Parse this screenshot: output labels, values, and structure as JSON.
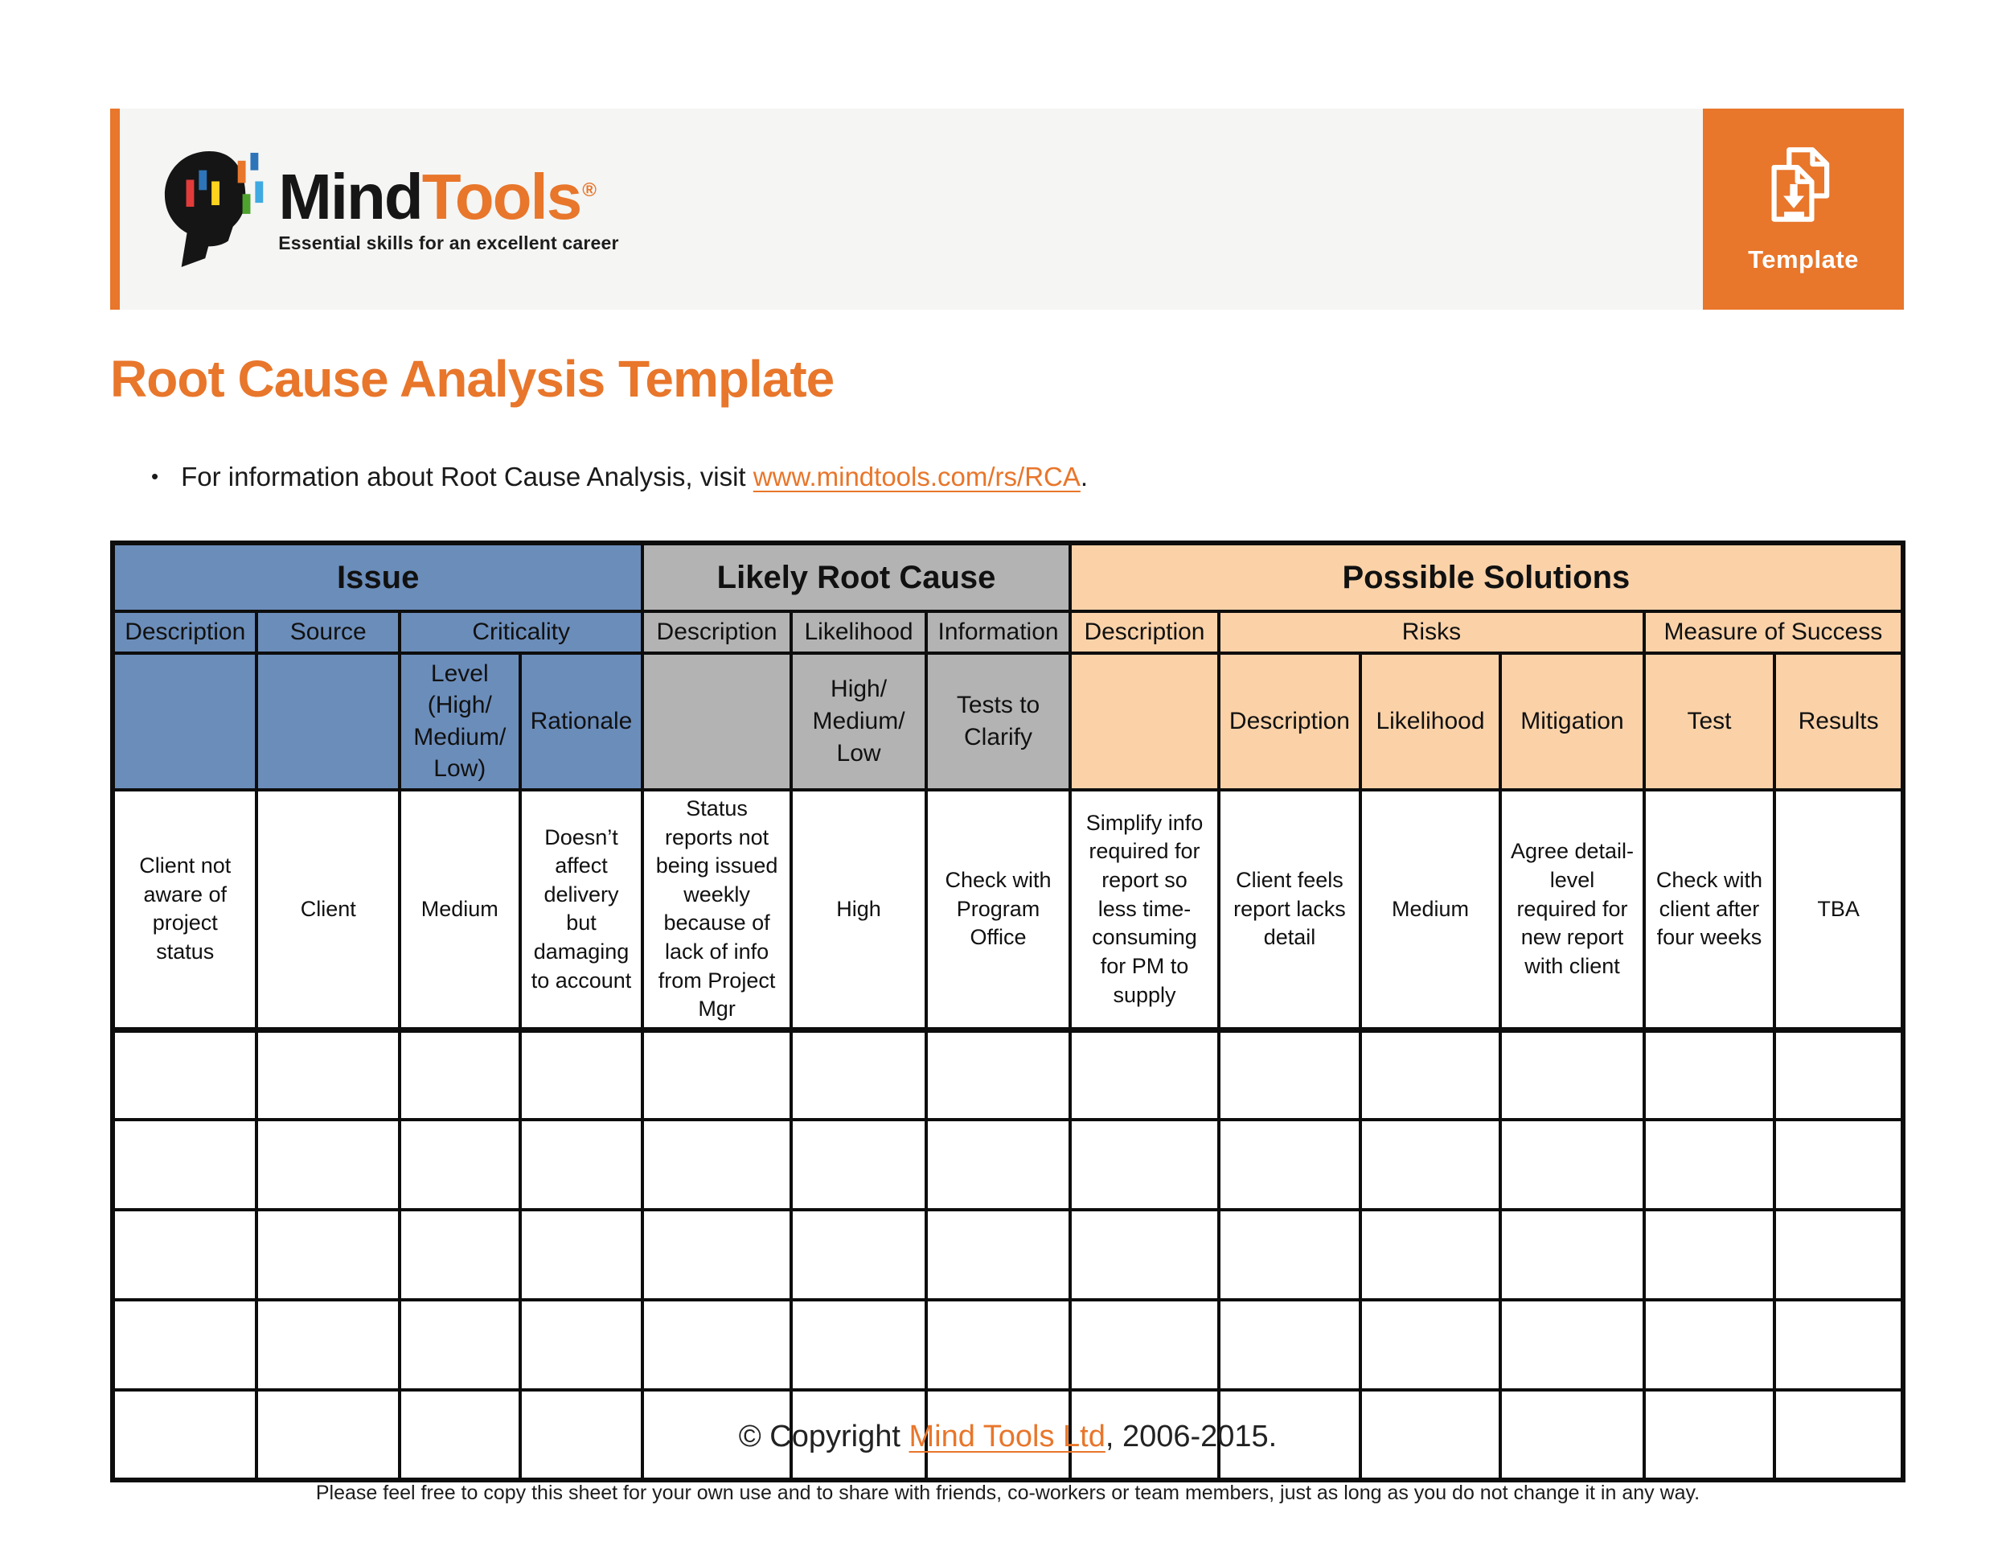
{
  "colors": {
    "accent_orange": "#E8762B",
    "issue_blue": "#6B8DBA",
    "root_cause_gray": "#B3B3B3",
    "solutions_peach": "#FBD2A8"
  },
  "header": {
    "logo": {
      "brand_black": "Mind",
      "brand_orange": "Tools",
      "registered": "®",
      "tagline": "Essential skills for an excellent career"
    },
    "template_button": {
      "label": "Template",
      "icon": "document-download-icon"
    }
  },
  "title": "Root Cause Analysis Template",
  "intro": {
    "bullet": "•",
    "before_link": "For information about Root Cause Analysis, visit ",
    "link_text": "www.mindtools.com/rs/RCA",
    "after_link": "."
  },
  "table": {
    "group_headers": [
      {
        "label": "Issue",
        "colspan": 4
      },
      {
        "label": "Likely Root Cause",
        "colspan": 3
      },
      {
        "label": "Possible Solutions",
        "colspan": 6
      }
    ],
    "sub_headers": [
      {
        "label": "Description"
      },
      {
        "label": "Source"
      },
      {
        "label": "Criticality",
        "colspan": 2
      },
      {
        "label": "Description"
      },
      {
        "label": "Likelihood"
      },
      {
        "label": "Information"
      },
      {
        "label": "Description"
      },
      {
        "label": "Risks",
        "colspan": 3
      },
      {
        "label": "Measure of Success",
        "colspan": 2
      }
    ],
    "detail_headers": [
      {
        "label": ""
      },
      {
        "label": ""
      },
      {
        "label": "Level (High/ Medium/ Low)"
      },
      {
        "label": "Rationale"
      },
      {
        "label": ""
      },
      {
        "label": "High/ Medium/ Low"
      },
      {
        "label": "Tests to Clarify"
      },
      {
        "label": ""
      },
      {
        "label": "Description"
      },
      {
        "label": "Likelihood"
      },
      {
        "label": "Mitigation"
      },
      {
        "label": "Test"
      },
      {
        "label": "Results"
      }
    ],
    "rows": [
      [
        "Client not aware of project status",
        "Client",
        "Medium",
        "Doesn’t affect delivery but damaging to account",
        "Status reports not being issued weekly because of lack of info from Project Mgr",
        "High",
        "Check with Program Office",
        "Simplify info required for report so less time-consuming for PM to supply",
        "Client feels report lacks detail",
        "Medium",
        "Agree detail-level required for new report with client",
        "Check with client after four weeks",
        "TBA"
      ]
    ],
    "empty_row_count": 5,
    "column_count": 13
  },
  "footer": {
    "copyright_before": "© Copyright ",
    "copyright_link": "Mind Tools Ltd",
    "copyright_after": ", 2006-2015.",
    "note": "Please feel free to copy this sheet for your own use and to share with friends, co-workers or team members, just as long as you do not change it in any way."
  }
}
